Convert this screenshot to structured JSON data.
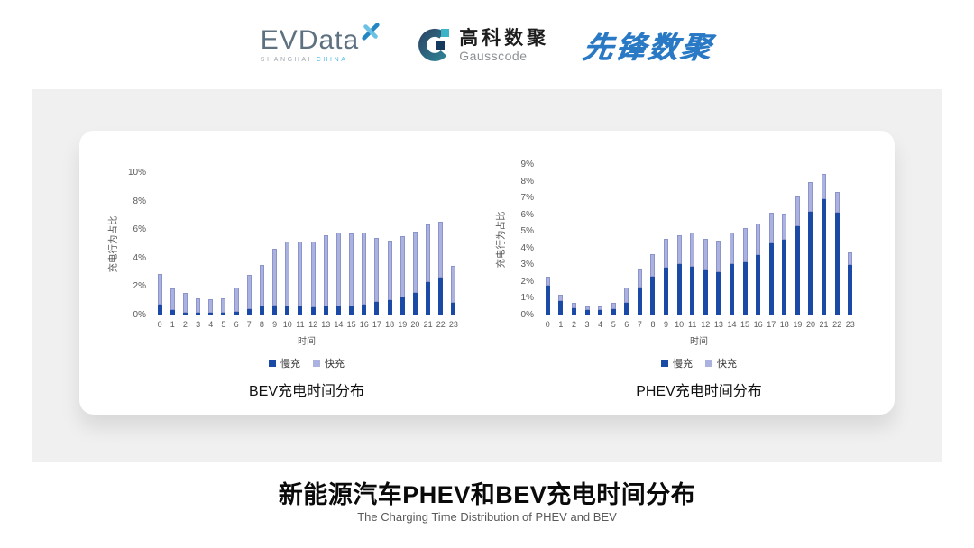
{
  "header": {
    "evdata": {
      "brand": "EVData",
      "sub1": "SHANGHAI",
      "sub2": "CHINA"
    },
    "gausscode": {
      "cn": "高科数聚",
      "en": "Gausscode"
    },
    "pioneer": {
      "brand": "先锋数聚"
    }
  },
  "colors": {
    "slow": "#1b49a6",
    "fast": "#abb2df",
    "fast_border": "#8b95cc",
    "axis_text": "#595959",
    "band_bg": "#f0f0f1"
  },
  "chart_data": [
    {
      "type": "bar",
      "stacked": true,
      "title": "BEV充电时间分布",
      "xlabel": "时间",
      "ylabel": "充电行为占比",
      "ylim": [
        0,
        10
      ],
      "ytick_step": 2,
      "ytick_suffix": "%",
      "grid": false,
      "legend_position": "bottom",
      "categories": [
        "0",
        "1",
        "2",
        "3",
        "4",
        "5",
        "6",
        "7",
        "8",
        "9",
        "10",
        "11",
        "12",
        "13",
        "14",
        "15",
        "16",
        "17",
        "18",
        "19",
        "20",
        "21",
        "22",
        "23"
      ],
      "series": [
        {
          "name": "慢充",
          "values": [
            0.7,
            0.3,
            0.15,
            0.1,
            0.1,
            0.1,
            0.2,
            0.4,
            0.55,
            0.65,
            0.55,
            0.6,
            0.5,
            0.55,
            0.55,
            0.55,
            0.7,
            0.9,
            1.0,
            1.2,
            1.55,
            2.25,
            2.6,
            0.8
          ]
        },
        {
          "name": "快充",
          "values": [
            2.15,
            1.55,
            1.35,
            1.05,
            0.95,
            1.05,
            1.7,
            2.4,
            2.95,
            3.95,
            4.55,
            4.55,
            4.6,
            5.0,
            5.2,
            5.15,
            5.05,
            4.5,
            4.2,
            4.3,
            4.25,
            4.05,
            3.9,
            2.65
          ]
        }
      ]
    },
    {
      "type": "bar",
      "stacked": true,
      "title": "PHEV充电时间分布",
      "xlabel": "时间",
      "ylabel": "充电行为占比",
      "ylim": [
        0,
        9
      ],
      "ytick_step": 1,
      "ytick_suffix": "%",
      "grid": false,
      "legend_position": "bottom",
      "categories": [
        "0",
        "1",
        "2",
        "3",
        "4",
        "5",
        "6",
        "7",
        "8",
        "9",
        "10",
        "11",
        "12",
        "13",
        "14",
        "15",
        "16",
        "17",
        "18",
        "19",
        "20",
        "21",
        "22",
        "23"
      ],
      "series": [
        {
          "name": "慢充",
          "values": [
            1.75,
            0.8,
            0.4,
            0.25,
            0.28,
            0.3,
            0.7,
            1.6,
            2.25,
            2.8,
            3.0,
            2.85,
            2.65,
            2.55,
            3.0,
            3.15,
            3.55,
            4.25,
            4.45,
            5.3,
            6.15,
            6.9,
            6.1,
            2.95
          ]
        },
        {
          "name": "快充",
          "values": [
            0.5,
            0.4,
            0.3,
            0.25,
            0.22,
            0.4,
            0.9,
            1.1,
            1.35,
            1.75,
            1.75,
            2.05,
            1.9,
            1.85,
            1.9,
            2.05,
            1.9,
            1.85,
            1.6,
            1.75,
            1.75,
            1.5,
            1.25,
            0.75
          ]
        }
      ]
    }
  ],
  "footer": {
    "title": "新能源汽车PHEV和BEV充电时间分布",
    "subtitle": "The Charging Time Distribution of PHEV and BEV"
  }
}
